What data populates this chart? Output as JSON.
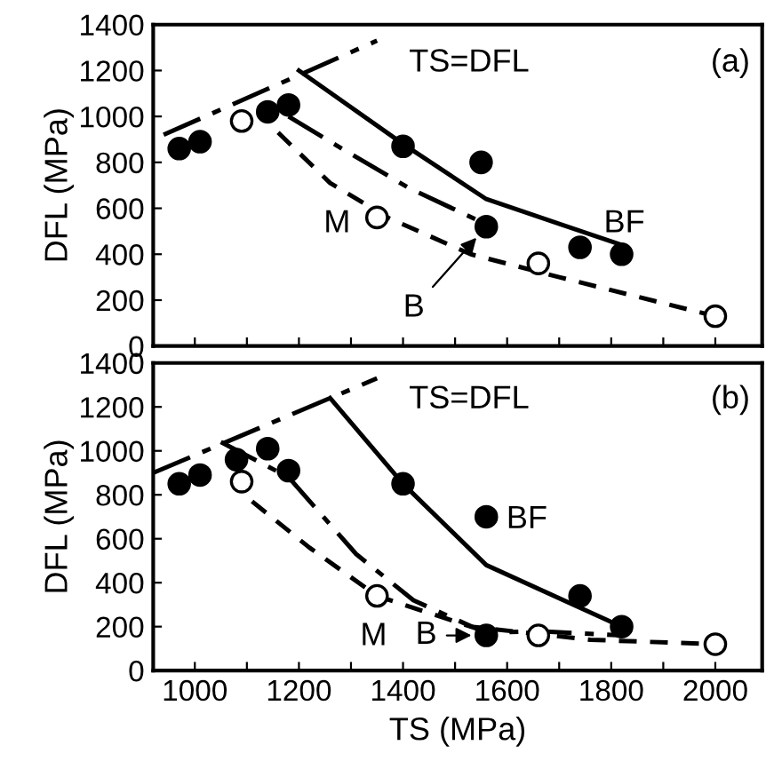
{
  "chart_data": [
    {
      "type": "scatter",
      "ylabel": "DFL (MPa)",
      "xlim": [
        920,
        2090
      ],
      "ylim": [
        0,
        1400
      ],
      "xticks": [
        {
          "value": 1000,
          "label": null
        },
        {
          "value": 1100,
          "label": null
        },
        {
          "value": 1200,
          "label": null
        },
        {
          "value": 1300,
          "label": null
        },
        {
          "value": 1400,
          "label": null
        },
        {
          "value": 1500,
          "label": null
        },
        {
          "value": 1600,
          "label": null
        },
        {
          "value": 1700,
          "label": null
        },
        {
          "value": 1800,
          "label": null
        },
        {
          "value": 1900,
          "label": null
        },
        {
          "value": 2000,
          "label": null
        }
      ],
      "yticks": [
        0,
        200,
        400,
        600,
        800,
        1000,
        1200,
        1400
      ],
      "tick_labels": "y",
      "grid": false,
      "legend": false,
      "series": [
        {
          "type": "line",
          "line_style": "dashed",
          "color": "#000000",
          "x": [
            940,
            1350
          ],
          "values": [
            920,
            1330
          ]
        },
        {
          "type": "line",
          "line_style": "solid",
          "color": "#000000",
          "x": [
            1200,
            1400,
            1560,
            1820
          ],
          "values": [
            1200,
            880,
            640,
            440
          ]
        },
        {
          "type": "line",
          "line_style": "dashed",
          "color": "#000000",
          "x": [
            1180,
            1260,
            1410,
            1560
          ],
          "values": [
            1000,
            890,
            690,
            530
          ]
        },
        {
          "type": "line",
          "line_style": "dotted",
          "color": "#000000",
          "x": [
            1160,
            1260,
            1370,
            1530,
            1700,
            2000
          ],
          "values": [
            930,
            710,
            560,
            400,
            300,
            130
          ]
        },
        {
          "marker": "circle",
          "color": "#000000",
          "x": [
            970,
            1010,
            1140,
            1180,
            1400,
            1550,
            1560,
            1740,
            1820
          ],
          "values": [
            860,
            890,
            1020,
            1050,
            870,
            800,
            520,
            430,
            400
          ]
        },
        {
          "marker": "circle",
          "color": "#ffffff",
          "x": [
            1090,
            1350,
            1660,
            2000
          ],
          "values": [
            980,
            560,
            360,
            130
          ]
        }
      ],
      "annotations": [
        "TS=DFL",
        "(a)",
        "M",
        "BF",
        {
          "text": "B",
          "x": 1560,
          "y": 520
        }
      ]
    },
    {
      "type": "scatter",
      "xlabel": "TS (MPa)",
      "ylabel": "DFL (MPa)",
      "xlim": [
        920,
        2090
      ],
      "ylim": [
        0,
        1400
      ],
      "xticks": [
        1000,
        {
          "value": 1100,
          "label": null
        },
        1200,
        {
          "value": 1300,
          "label": null
        },
        1400,
        {
          "value": 1500,
          "label": null
        },
        1600,
        {
          "value": 1700,
          "label": null
        },
        1800,
        {
          "value": 1900,
          "label": null
        },
        2000
      ],
      "yticks": [
        0,
        200,
        400,
        600,
        800,
        1000,
        1200,
        1400
      ],
      "grid": false,
      "legend": false,
      "series": [
        {
          "type": "line",
          "line_style": "dashed",
          "color": "#000000",
          "x": [
            920,
            1350
          ],
          "values": [
            900,
            1330
          ]
        },
        {
          "type": "line",
          "line_style": "solid",
          "color": "#000000",
          "x": [
            1260,
            1400,
            1560,
            1820
          ],
          "values": [
            1240,
            850,
            480,
            200
          ]
        },
        {
          "type": "line",
          "line_style": "dashed",
          "color": "#000000",
          "x": [
            1050,
            1180,
            1310,
            1420,
            1560,
            1650,
            1820
          ],
          "values": [
            1040,
            880,
            530,
            320,
            170,
            180,
            160
          ]
        },
        {
          "type": "line",
          "line_style": "dotted",
          "color": "#000000",
          "x": [
            1110,
            1220,
            1350,
            1530,
            1760,
            2000
          ],
          "values": [
            770,
            560,
            340,
            200,
            140,
            120
          ]
        },
        {
          "marker": "circle",
          "color": "#000000",
          "x": [
            970,
            1010,
            1080,
            1140,
            1180,
            1400,
            1560,
            1560,
            1740,
            1820
          ],
          "values": [
            850,
            890,
            960,
            1010,
            910,
            850,
            700,
            160,
            340,
            200
          ]
        },
        {
          "marker": "circle",
          "color": "#ffffff",
          "x": [
            1090,
            1350,
            1660,
            2000
          ],
          "values": [
            860,
            340,
            160,
            120
          ]
        }
      ],
      "annotations": [
        "TS=DFL",
        "(b)",
        "BF",
        "M",
        {
          "text": "B",
          "x": 1560,
          "y": 160
        }
      ]
    }
  ]
}
